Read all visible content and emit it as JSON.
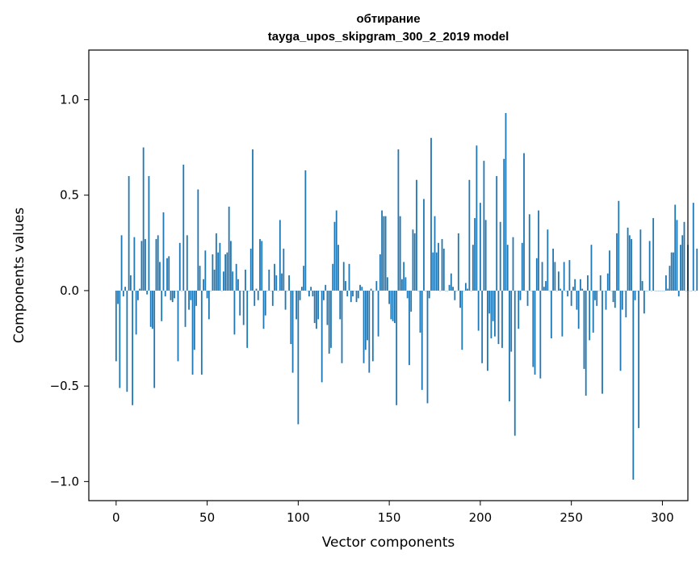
{
  "chart_data": {
    "type": "bar",
    "title": "обтирание",
    "subtitle": "tayga_upos_skipgram_300_2_2019 model",
    "xlabel": "Vector components",
    "ylabel": "Components values",
    "xlim": [
      -15,
      314
    ],
    "ylim": [
      -1.1,
      1.26
    ],
    "xticks": [
      0,
      50,
      100,
      150,
      200,
      250,
      300
    ],
    "xtick_labels": [
      "0",
      "50",
      "100",
      "150",
      "200",
      "250",
      "300"
    ],
    "yticks": [
      -1.0,
      -0.5,
      0.0,
      0.5,
      1.0
    ],
    "ytick_labels": [
      "−1.0",
      "−0.5",
      "0.0",
      "0.5",
      "1.0"
    ],
    "grid": false,
    "bar_color": "#1f77b4",
    "values": [
      -0.37,
      -0.07,
      -0.51,
      0.29,
      -0.03,
      0.02,
      -0.53,
      0.6,
      0.08,
      -0.6,
      0.28,
      -0.23,
      -0.05,
      0.01,
      0.26,
      0.75,
      0.27,
      -0.02,
      0.6,
      -0.19,
      -0.2,
      -0.51,
      0.27,
      0.29,
      0.15,
      -0.16,
      0.41,
      -0.03,
      0.17,
      0.18,
      -0.05,
      -0.06,
      -0.04,
      0.0,
      -0.37,
      0.25,
      0.0,
      0.66,
      -0.19,
      0.29,
      -0.1,
      -0.05,
      -0.44,
      -0.31,
      -0.08,
      0.53,
      0.13,
      -0.44,
      0.06,
      0.21,
      -0.04,
      -0.15,
      0.0,
      0.19,
      0.11,
      0.3,
      0.2,
      0.25,
      0.0,
      0.1,
      0.19,
      0.2,
      0.44,
      0.26,
      0.1,
      -0.23,
      0.14,
      0.06,
      -0.13,
      0.0,
      -0.18,
      0.11,
      -0.3,
      0.0,
      0.22,
      0.74,
      -0.08,
      0.01,
      -0.05,
      0.27,
      0.26,
      -0.2,
      -0.13,
      0.0,
      0.11,
      0.0,
      -0.08,
      0.14,
      0.08,
      0.0,
      0.37,
      0.09,
      0.22,
      -0.1,
      0.0,
      0.08,
      -0.28,
      -0.43,
      0.0,
      -0.15,
      -0.7,
      -0.05,
      0.02,
      0.13,
      0.63,
      0.0,
      -0.03,
      0.02,
      -0.03,
      -0.17,
      -0.2,
      -0.15,
      0.0,
      -0.48,
      -0.05,
      0.03,
      -0.18,
      -0.33,
      -0.3,
      0.14,
      0.36,
      0.42,
      0.24,
      -0.15,
      -0.38,
      0.15,
      0.05,
      -0.03,
      0.14,
      -0.06,
      -0.03,
      0.0,
      -0.06,
      -0.04,
      0.03,
      0.02,
      -0.38,
      -0.31,
      -0.26,
      -0.43,
      0.01,
      -0.37,
      0.0,
      0.05,
      -0.24,
      0.19,
      0.42,
      0.39,
      0.39,
      0.07,
      -0.07,
      -0.15,
      -0.16,
      -0.17,
      -0.6,
      0.74,
      0.39,
      0.06,
      0.15,
      0.07,
      -0.04,
      -0.39,
      -0.11,
      0.32,
      0.3,
      0.58,
      0.0,
      -0.22,
      -0.52,
      0.48,
      0.0,
      -0.59,
      -0.04,
      0.8,
      0.2,
      0.39,
      0.2,
      0.25,
      0.0,
      0.27,
      0.22,
      0.0,
      0.0,
      0.03,
      0.09,
      0.02,
      -0.05,
      0.0,
      0.3,
      -0.09,
      -0.31,
      0.0,
      0.04,
      0.01,
      0.58,
      0.0,
      0.24,
      0.38,
      0.76,
      -0.21,
      0.46,
      -0.38,
      0.68,
      0.37,
      -0.42,
      -0.12,
      -0.25,
      -0.16,
      -0.24,
      0.6,
      -0.28,
      0.36,
      -0.3,
      0.69,
      0.93,
      0.24,
      -0.58,
      -0.32,
      0.28,
      -0.76,
      0.0,
      -0.2,
      -0.05,
      0.25,
      0.72,
      0.0,
      -0.08,
      0.4,
      0.0,
      -0.4,
      -0.44,
      0.17,
      0.42,
      -0.46,
      0.15,
      0.02,
      0.05,
      0.32,
      0.0,
      -0.25,
      0.22,
      0.15,
      0.0,
      0.1,
      0.01,
      -0.24,
      0.15,
      0.0,
      -0.03,
      0.16,
      -0.08,
      0.02,
      0.06,
      -0.1,
      -0.2,
      0.06,
      0.01,
      -0.41,
      -0.55,
      0.08,
      -0.26,
      0.24,
      -0.22,
      -0.05,
      -0.08,
      0.0,
      0.08,
      -0.54,
      0.0,
      -0.1,
      0.09,
      0.21,
      0.0,
      -0.06,
      -0.09,
      0.3,
      0.47,
      -0.42,
      -0.1,
      0.0,
      -0.14,
      0.33,
      0.29,
      0.27,
      -0.99,
      -0.05,
      0.0,
      -0.72,
      0.32,
      0.05,
      -0.12,
      0.0,
      0.0,
      0.26,
      0.0,
      0.38,
      0.0,
      0.0,
      0.0,
      0.0,
      0.0,
      0.0,
      0.08,
      0.01,
      0.13,
      0.2,
      0.2,
      0.45,
      0.37,
      -0.03,
      0.24,
      0.29,
      0.36,
      0.0,
      0.24,
      0.0,
      0.0,
      0.46,
      0.0,
      0.22
    ]
  }
}
